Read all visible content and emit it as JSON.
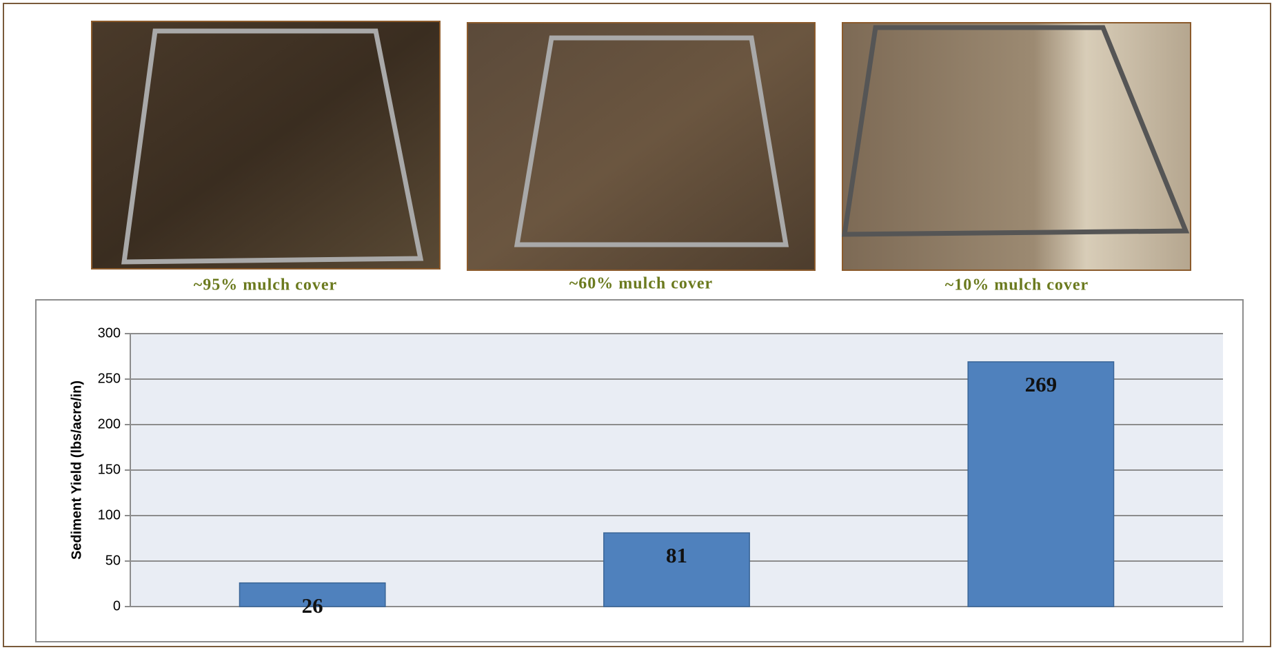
{
  "captions": [
    "~95% mulch cover",
    "~60% mulch cover",
    "~10% mulch cover"
  ],
  "chart_data": {
    "type": "bar",
    "y_label": "Sediment Yield (lbs/acre/in)",
    "categories": [
      null,
      null,
      null
    ],
    "values": [
      26,
      81,
      269
    ],
    "color": "#4f81bd",
    "ylim": [
      0,
      300
    ],
    "yticks": [
      0,
      50,
      100,
      150,
      200,
      250,
      300
    ],
    "grid": true
  }
}
